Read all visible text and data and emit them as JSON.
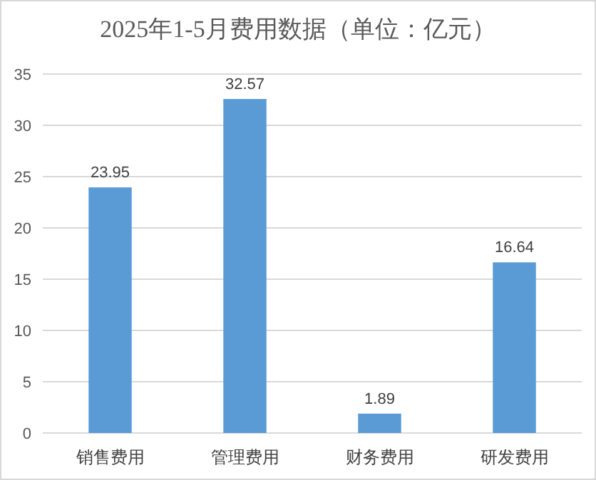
{
  "chart_data": {
    "type": "bar",
    "title": "2025年1-5月费用数据（单位：亿元）",
    "categories": [
      "销售费用",
      "管理费用",
      "财务费用",
      "研发费用"
    ],
    "values": [
      23.95,
      32.57,
      1.89,
      16.64
    ],
    "color": "#5b9bd5",
    "ylim": [
      0,
      35
    ],
    "yticks": [
      0,
      5,
      10,
      15,
      20,
      25,
      30,
      35
    ],
    "grid": "y",
    "data_labels": true
  }
}
